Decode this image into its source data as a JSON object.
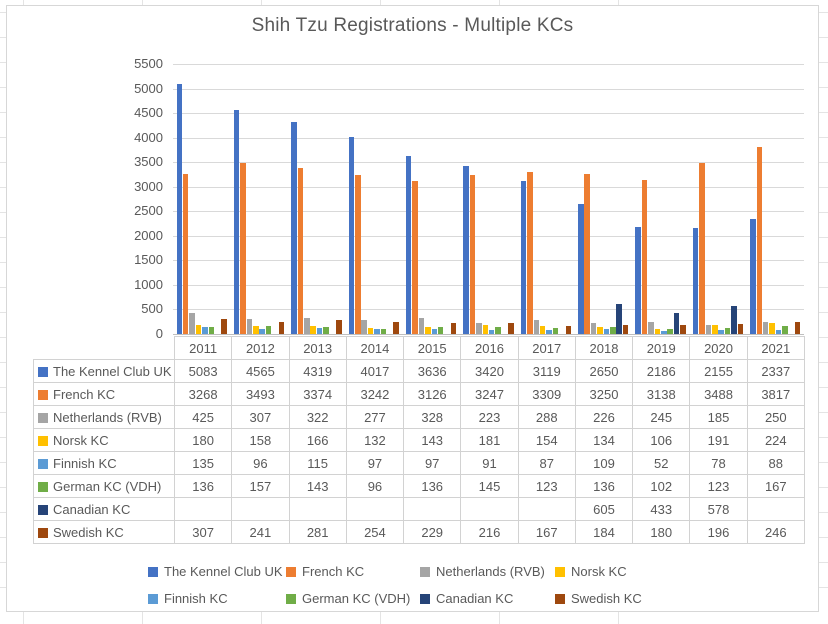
{
  "chart_data": {
    "type": "bar",
    "title": "Shih Tzu Registrations - Multiple KCs",
    "categories": [
      "2011",
      "2012",
      "2013",
      "2014",
      "2015",
      "2016",
      "2017",
      "2018",
      "2019",
      "2020",
      "2021"
    ],
    "series": [
      {
        "name": "The Kennel Club UK",
        "color": "#4472C4",
        "values": [
          5083,
          4565,
          4319,
          4017,
          3636,
          3420,
          3119,
          2650,
          2186,
          2155,
          2337
        ]
      },
      {
        "name": "French KC",
        "color": "#ED7D31",
        "values": [
          3268,
          3493,
          3374,
          3242,
          3126,
          3247,
          3309,
          3250,
          3138,
          3488,
          3817
        ]
      },
      {
        "name": "Netherlands (RVB)",
        "color": "#A5A5A5",
        "values": [
          425,
          307,
          322,
          277,
          328,
          223,
          288,
          226,
          245,
          185,
          250
        ]
      },
      {
        "name": "Norsk KC",
        "color": "#FFC000",
        "values": [
          180,
          158,
          166,
          132,
          143,
          181,
          154,
          134,
          106,
          191,
          224
        ]
      },
      {
        "name": "Finnish KC",
        "color": "#5B9BD5",
        "values": [
          135,
          96,
          115,
          97,
          97,
          91,
          87,
          109,
          52,
          78,
          88
        ]
      },
      {
        "name": "German KC (VDH)",
        "color": "#70AD47",
        "values": [
          136,
          157,
          143,
          96,
          136,
          145,
          123,
          136,
          102,
          123,
          167
        ]
      },
      {
        "name": "Canadian KC",
        "color": "#264478",
        "values": [
          null,
          null,
          null,
          null,
          null,
          null,
          null,
          605,
          433,
          578,
          null
        ]
      },
      {
        "name": "Swedish KC",
        "color": "#9E480E",
        "values": [
          307,
          241,
          281,
          254,
          229,
          216,
          167,
          184,
          180,
          196,
          246
        ]
      }
    ],
    "ylim": [
      0,
      5500
    ],
    "yticks": [
      0,
      500,
      1000,
      1500,
      2000,
      2500,
      3000,
      3500,
      4000,
      4500,
      5000,
      5500
    ],
    "grid": true,
    "legend_position": "bottom",
    "has_data_table": true
  }
}
